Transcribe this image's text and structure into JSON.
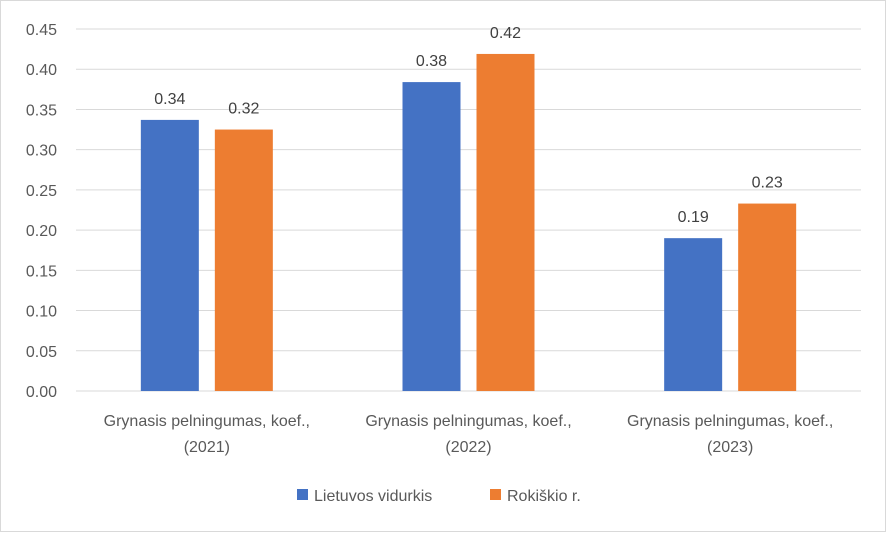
{
  "chart_data": {
    "type": "bar",
    "categories": [
      [
        "Grynasis pelningumas, koef.,",
        "(2021)"
      ],
      [
        "Grynasis pelningumas, koef.,",
        "(2022)"
      ],
      [
        "Grynasis pelningumas, koef.,",
        "(2023)"
      ]
    ],
    "series": [
      {
        "name": "Lietuvos vidurkis",
        "color": "#4472c4",
        "values": [
          0.337,
          0.384,
          0.19
        ],
        "labels": [
          "0.34",
          "0.38",
          "0.19"
        ]
      },
      {
        "name": "Rokiškio r.",
        "color": "#ed7d31",
        "values": [
          0.325,
          0.419,
          0.233
        ],
        "labels": [
          "0.32",
          "0.42",
          "0.23"
        ]
      }
    ],
    "y_ticks": [
      "0.00",
      "0.05",
      "0.10",
      "0.15",
      "0.20",
      "0.25",
      "0.30",
      "0.35",
      "0.40",
      "0.45"
    ],
    "ylim": [
      0,
      0.45
    ],
    "grid": true,
    "legend": "bottom",
    "title": "",
    "xlabel": "",
    "ylabel": ""
  }
}
